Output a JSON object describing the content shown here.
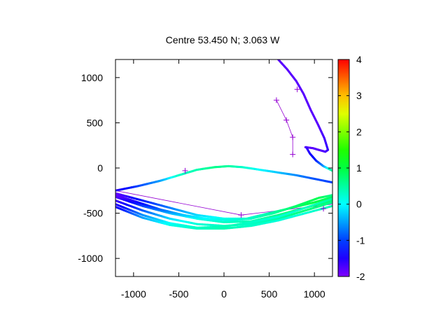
{
  "chart_data": {
    "type": "scatter",
    "title": "Centre 53.450 N; 3.063  W",
    "xlabel": "",
    "ylabel": "",
    "xlim": [
      -1200,
      1200
    ],
    "ylim": [
      -1200,
      1200
    ],
    "x_ticks": [
      -1000,
      -500,
      0,
      500,
      1000
    ],
    "y_ticks": [
      -1000,
      -500,
      0,
      500,
      1000
    ],
    "x_tick_labels": [
      "-1000",
      "-500",
      "0",
      "500",
      "1000"
    ],
    "y_tick_labels": [
      "-1000",
      "-500",
      "0",
      "500",
      "1000"
    ],
    "grid": false,
    "colorbar": {
      "range": [
        -2,
        4
      ],
      "ticks": [
        -2,
        -1,
        0,
        1,
        2,
        3,
        4
      ],
      "tick_labels": [
        "-2",
        "-1",
        "0",
        "1",
        "2",
        "3",
        "4"
      ],
      "palette": "rainbow",
      "placement": "right"
    },
    "tracks": [
      {
        "points": [
          [
            600,
            1200
          ],
          [
            700,
            1090
          ],
          [
            800,
            960
          ],
          [
            880,
            820
          ],
          [
            960,
            640
          ],
          [
            1040,
            480
          ],
          [
            1110,
            330
          ],
          [
            1150,
            200
          ],
          [
            1120,
            180
          ],
          [
            1050,
            200
          ],
          [
            980,
            220
          ],
          [
            900,
            230
          ]
        ],
        "colour_values": [
          -1.8,
          -1.8,
          -1.8,
          -1.8,
          -1.8,
          -1.8,
          -1.7,
          -1.6,
          -1.7,
          -1.8,
          -1.8,
          -1.8
        ]
      },
      {
        "points": [
          [
            910,
            230
          ],
          [
            950,
            160
          ],
          [
            1020,
            80
          ],
          [
            1100,
            20
          ],
          [
            1160,
            -10
          ],
          [
            1200,
            -30
          ]
        ],
        "colour_values": [
          -1.7,
          -1.5,
          -1.2,
          -0.6,
          0.2,
          0.5
        ]
      },
      {
        "points": [
          [
            -1200,
            -250
          ],
          [
            -950,
            -200
          ],
          [
            -700,
            -140
          ],
          [
            -500,
            -80
          ],
          [
            -300,
            -20
          ],
          [
            -100,
            10
          ],
          [
            50,
            20
          ],
          [
            200,
            10
          ],
          [
            400,
            -20
          ],
          [
            600,
            -50
          ],
          [
            800,
            -80
          ],
          [
            1000,
            -120
          ],
          [
            1200,
            -160
          ]
        ],
        "colour_values": [
          -1.6,
          -1.0,
          -0.5,
          0.3,
          0.4,
          0.6,
          0.5,
          0.3,
          0.0,
          -0.3,
          -0.6,
          -0.9,
          -1.0
        ]
      },
      {
        "points": [
          [
            -1200,
            -280
          ],
          [
            -900,
            -360
          ],
          [
            -600,
            -440
          ],
          [
            -300,
            -520
          ],
          [
            0,
            -560
          ],
          [
            250,
            -560
          ],
          [
            500,
            -500
          ],
          [
            750,
            -440
          ],
          [
            1000,
            -380
          ],
          [
            1200,
            -320
          ]
        ],
        "colour_values": [
          -1.9,
          -1.2,
          -0.7,
          -0.2,
          0.1,
          0.2,
          0.4,
          0.7,
          1.0,
          0.8
        ]
      },
      {
        "points": [
          [
            -1200,
            -320
          ],
          [
            -900,
            -420
          ],
          [
            -600,
            -500
          ],
          [
            -300,
            -560
          ],
          [
            0,
            -600
          ],
          [
            300,
            -590
          ],
          [
            600,
            -520
          ],
          [
            900,
            -440
          ],
          [
            1200,
            -360
          ]
        ],
        "colour_values": [
          -1.8,
          -1.0,
          -0.4,
          0.1,
          0.3,
          0.4,
          0.6,
          0.9,
          0.7
        ]
      },
      {
        "points": [
          [
            -1200,
            -360
          ],
          [
            -900,
            -470
          ],
          [
            -600,
            -560
          ],
          [
            -300,
            -620
          ],
          [
            0,
            -640
          ],
          [
            300,
            -620
          ],
          [
            600,
            -560
          ],
          [
            900,
            -470
          ],
          [
            1200,
            -380
          ]
        ],
        "colour_values": [
          -1.7,
          -0.9,
          -0.2,
          0.2,
          0.3,
          0.3,
          0.5,
          0.7,
          0.6
        ]
      },
      {
        "points": [
          [
            -1200,
            -400
          ],
          [
            -900,
            -520
          ],
          [
            -600,
            -610
          ],
          [
            -300,
            -660
          ],
          [
            0,
            -650
          ],
          [
            300,
            -600
          ],
          [
            600,
            -540
          ],
          [
            900,
            -440
          ],
          [
            1200,
            -340
          ]
        ],
        "colour_values": [
          -1.6,
          -0.6,
          0.0,
          0.3,
          0.4,
          0.3,
          0.2,
          0.3,
          0.5
        ]
      },
      {
        "points": [
          [
            -1200,
            -300
          ],
          [
            -950,
            -380
          ],
          [
            -700,
            -460
          ],
          [
            -450,
            -520
          ],
          [
            -200,
            -560
          ],
          [
            50,
            -580
          ],
          [
            300,
            -560
          ],
          [
            550,
            -500
          ],
          [
            800,
            -420
          ],
          [
            1050,
            -330
          ],
          [
            1200,
            -300
          ]
        ],
        "colour_values": [
          -1.9,
          -1.4,
          -0.8,
          -0.3,
          0.0,
          0.2,
          0.3,
          0.5,
          0.8,
          0.9,
          0.6
        ]
      },
      {
        "points": [
          [
            -1200,
            -430
          ],
          [
            -900,
            -550
          ],
          [
            -600,
            -630
          ],
          [
            -300,
            -670
          ],
          [
            0,
            -670
          ],
          [
            300,
            -640
          ],
          [
            600,
            -580
          ],
          [
            900,
            -500
          ],
          [
            1200,
            -420
          ]
        ],
        "colour_values": [
          -1.5,
          -0.5,
          0.1,
          0.3,
          0.4,
          0.3,
          0.2,
          0.2,
          0.4
        ]
      }
    ],
    "markers": [
      {
        "points": [
          [
            -430,
            -30
          ]
        ]
      },
      {
        "points": [
          [
            580,
            750
          ],
          [
            690,
            530
          ],
          [
            760,
            340
          ],
          [
            760,
            150
          ]
        ]
      },
      {
        "points": [
          [
            810,
            870
          ]
        ]
      },
      {
        "points": [
          [
            190,
            -520
          ],
          [
            1100,
            -450
          ]
        ]
      }
    ],
    "thin_lines": [
      [
        [
          -1200,
          -250
        ],
        [
          190,
          -520
        ],
        [
          1200,
          -400
        ]
      ],
      [
        [
          580,
          750
        ],
        [
          690,
          530
        ],
        [
          760,
          340
        ],
        [
          760,
          150
        ]
      ]
    ]
  }
}
